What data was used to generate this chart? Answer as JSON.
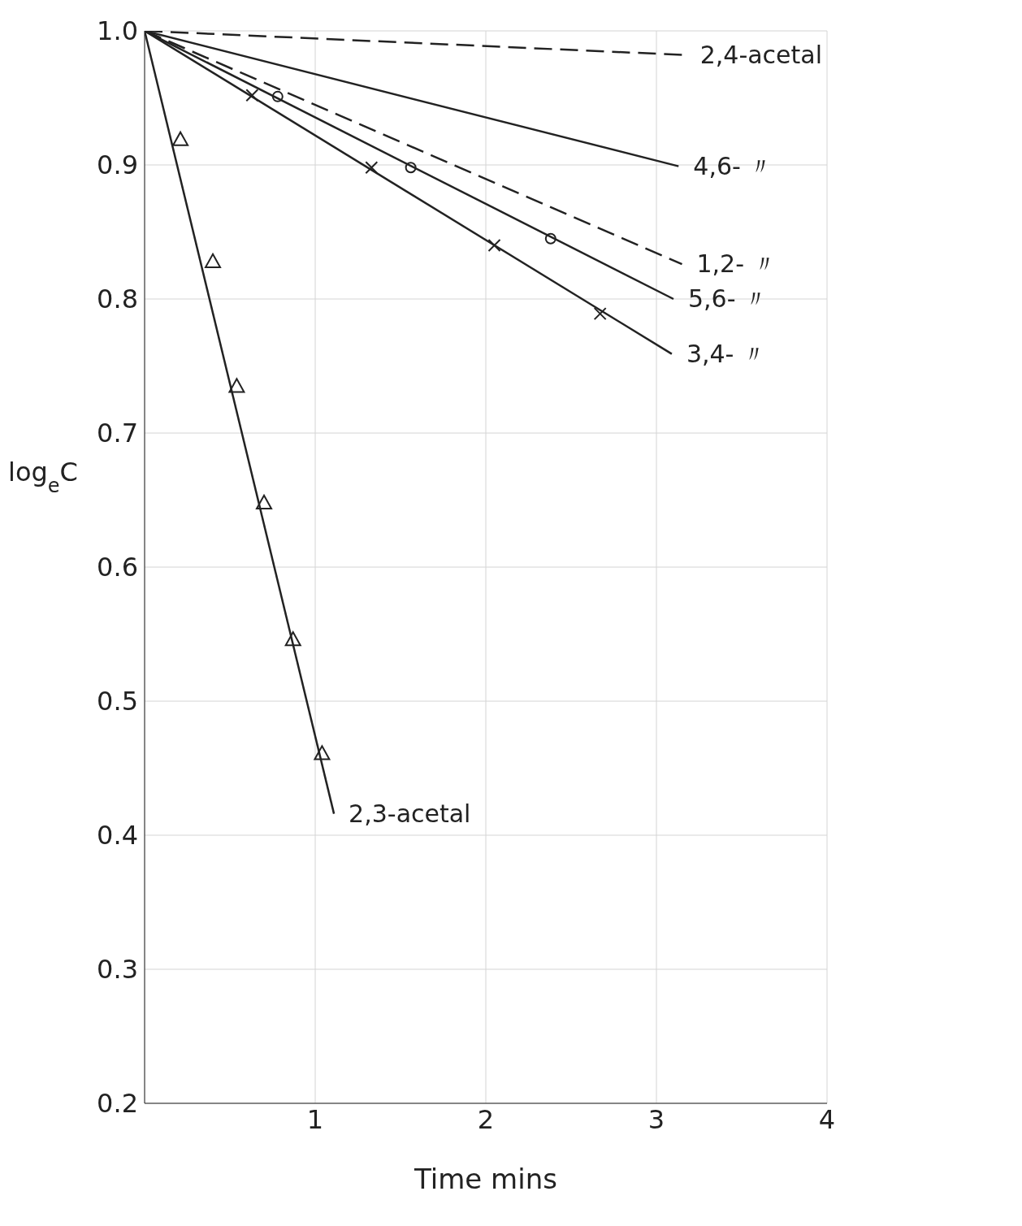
{
  "chart_data": {
    "type": "line",
    "xlabel": "Time  mins",
    "ylabel": "log$_{e}$C",
    "xlim": [
      0,
      4
    ],
    "xticks": [
      1,
      2,
      3,
      4
    ],
    "ylim": [
      0.2,
      1.0
    ],
    "yticks": [
      0.2,
      0.3,
      0.4,
      0.5,
      0.6,
      0.7,
      0.8,
      0.9,
      {
        "value": 1.0,
        "label": "1.0"
      }
    ],
    "grid": true,
    "series": [
      {
        "name": "2,4-acetal",
        "color": "#222222",
        "line_style": "dashed",
        "marker": "none",
        "x": [
          0,
          3.17
        ],
        "values": [
          1.0,
          0.982
        ]
      },
      {
        "name": "4,6- 〃",
        "color": "#222222",
        "line_style": "solid",
        "marker": "none",
        "x": [
          0,
          3.13
        ],
        "values": [
          1.0,
          0.899
        ]
      },
      {
        "name": "1,2- 〃",
        "color": "#222222",
        "line_style": "dashed",
        "marker": "none",
        "x": [
          0,
          3.15
        ],
        "values": [
          1.0,
          0.826
        ]
      },
      {
        "name": "5,6- 〃",
        "color": "#222222",
        "line_style": "solid",
        "marker": "none",
        "x": [
          0,
          3.1
        ],
        "values": [
          1.0,
          0.8
        ]
      },
      {
        "type": "scatter",
        "color": "#222222",
        "marker": "circle",
        "x": [
          0.78,
          1.56,
          2.38
        ],
        "values": [
          0.951,
          0.898,
          0.845
        ]
      },
      {
        "name": "3,4- 〃",
        "color": "#222222",
        "line_style": "solid",
        "marker": "none",
        "x": [
          0,
          3.09
        ],
        "values": [
          1.0,
          0.759
        ]
      },
      {
        "type": "scatter",
        "color": "#222222",
        "marker": "cross",
        "x": [
          0.63,
          1.33,
          2.05,
          2.67
        ],
        "values": [
          0.952,
          0.898,
          0.84,
          0.789
        ]
      },
      {
        "name": "2,3-acetal",
        "color": "#222222",
        "line_style": "solid",
        "marker": "none",
        "x": [
          0,
          1.11
        ],
        "values": [
          1.0,
          0.416
        ]
      },
      {
        "type": "scatter",
        "color": "#222222",
        "marker": "triangle",
        "x": [
          0.21,
          0.4,
          0.54,
          0.7,
          0.87,
          1.04
        ],
        "values": [
          0.919,
          0.828,
          0.735,
          0.648,
          0.546,
          0.461
        ]
      }
    ]
  }
}
